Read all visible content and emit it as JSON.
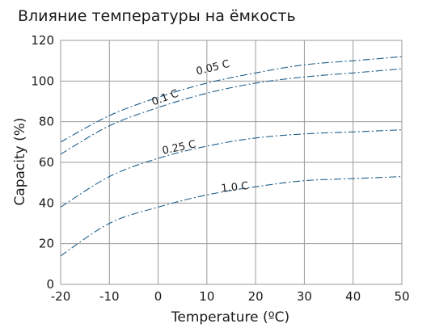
{
  "chart_data": {
    "type": "line",
    "title": "Влияние температуры на ёмкость",
    "xlabel": "Temperature (ºC)",
    "ylabel": "Capacity (%)",
    "xlim": [
      -20,
      50
    ],
    "ylim": [
      0,
      120
    ],
    "x_ticks": [
      "-20",
      "-10",
      "0",
      "10",
      "20",
      "30",
      "40",
      "50"
    ],
    "y_ticks": [
      "0",
      "20",
      "40",
      "60",
      "80",
      "100",
      "120"
    ],
    "grid": true,
    "line_color": "#1f5f8b",
    "series": [
      {
        "name": "0.05 C",
        "x": [
          -20,
          -10,
          0,
          10,
          20,
          30,
          40,
          50
        ],
        "values": [
          70,
          83,
          92,
          99,
          104,
          108,
          110,
          112
        ]
      },
      {
        "name": "0.1 C",
        "x": [
          -20,
          -10,
          0,
          10,
          20,
          30,
          40,
          50
        ],
        "values": [
          64,
          78,
          87,
          94,
          99,
          102,
          104,
          106
        ]
      },
      {
        "name": "0.25 C",
        "x": [
          -20,
          -10,
          0,
          10,
          20,
          30,
          40,
          50
        ],
        "values": [
          38,
          53,
          62,
          68,
          72,
          74,
          75,
          76
        ]
      },
      {
        "name": "1.0 C",
        "x": [
          -20,
          -10,
          0,
          10,
          20,
          30,
          40,
          50
        ],
        "values": [
          14,
          30,
          38,
          44,
          48,
          51,
          52,
          53
        ]
      }
    ],
    "annotations": [
      {
        "text": "0.05 C",
        "x": 8,
        "y": 103,
        "angle": -14
      },
      {
        "text": "0.1 C",
        "x": -1,
        "y": 88,
        "angle": -20
      },
      {
        "text": "0.25 C",
        "x": 1,
        "y": 64,
        "angle": -12
      },
      {
        "text": "1.0 C",
        "x": 13,
        "y": 45.5,
        "angle": -6
      }
    ]
  }
}
